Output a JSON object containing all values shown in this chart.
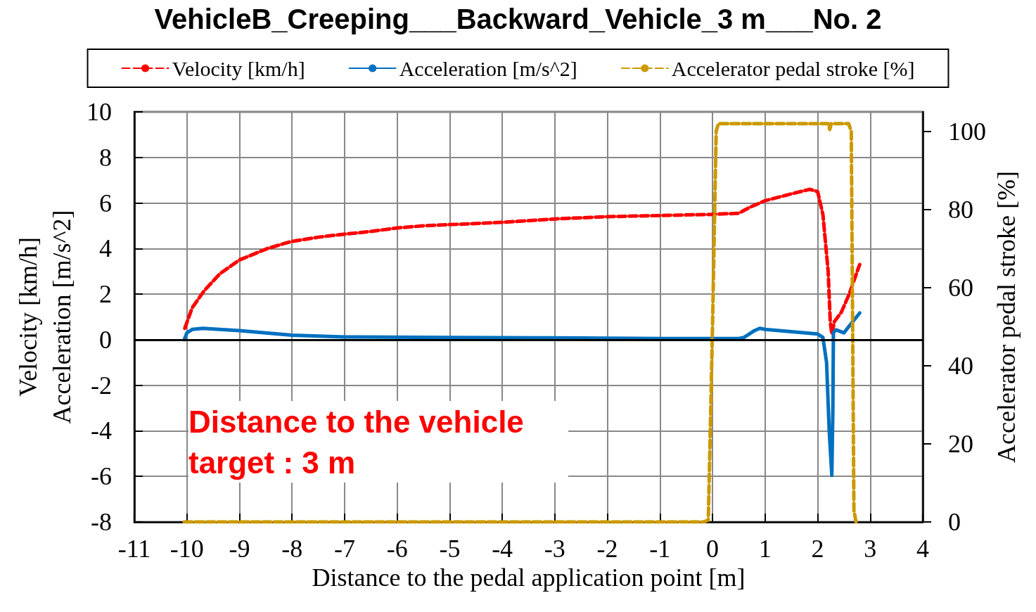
{
  "chart_data": {
    "type": "line",
    "title": "VehicleB_Creeping___Backward_Vehicle_3 m___No. 2",
    "xlabel": "Distance to the pedal application point [m]",
    "ylabel": "Velocity [km/h]\nAcceleration [m/s^2]",
    "y2label": "Accelerator pedal stroke [%]",
    "xlim": [
      -11,
      4
    ],
    "xticks": [
      -11,
      -10,
      -9,
      -8,
      -7,
      -6,
      -5,
      -4,
      -3,
      -2,
      -1,
      0,
      1,
      2,
      3,
      4
    ],
    "ylim": [
      -8,
      10
    ],
    "yticks": [
      -8,
      -6,
      -4,
      -2,
      0,
      2,
      4,
      6,
      8,
      10
    ],
    "y2lim": [
      0,
      105
    ],
    "y2ticks": [
      0,
      20,
      40,
      60,
      80,
      100
    ],
    "grid": true,
    "legend": "top",
    "marker": "none",
    "ref_lines": [
      {
        "axis": "y",
        "value": 0,
        "color": "#000000"
      }
    ],
    "annotations": [
      "Distance to the vehicle target : 3 m"
    ],
    "series": [
      {
        "name": "Velocity [km/h]",
        "color": "#ff0000",
        "line_style": "dashed",
        "x": [
          -10.04,
          -9.9,
          -9.67,
          -9.37,
          -9.0,
          -8.47,
          -8.03,
          -7.5,
          -7.13,
          -6.5,
          -6.02,
          -5.5,
          -5.0,
          -4.0,
          -3.0,
          -2.0,
          -1.0,
          0.0,
          0.5,
          0.7,
          1.0,
          1.5,
          1.85,
          2.0,
          2.1,
          2.2,
          2.24,
          2.27,
          2.32,
          2.45,
          2.6,
          2.8
        ],
        "values": [
          0.5,
          1.4,
          2.15,
          2.9,
          3.5,
          4.0,
          4.3,
          4.5,
          4.6,
          4.75,
          4.9,
          5.0,
          5.05,
          5.15,
          5.3,
          5.4,
          5.45,
          5.5,
          5.55,
          5.8,
          6.1,
          6.4,
          6.6,
          6.5,
          5.5,
          3.0,
          0.8,
          0.25,
          0.8,
          1.2,
          2.0,
          3.3
        ]
      },
      {
        "name": "Acceleration [m/s^2]",
        "color": "#0070c0",
        "line_style": "solid",
        "x": [
          -10.05,
          -10.0,
          -9.9,
          -9.7,
          -9.0,
          -8.5,
          -8.0,
          -7.0,
          -5.0,
          -3.0,
          -1.0,
          0.5,
          0.6,
          0.8,
          0.9,
          1.0,
          2.0,
          2.1,
          2.17,
          2.22,
          2.27,
          2.29,
          2.3,
          2.35,
          2.5,
          2.6,
          2.8
        ],
        "values": [
          0.0,
          0.3,
          0.45,
          0.5,
          0.4,
          0.3,
          0.2,
          0.12,
          0.1,
          0.08,
          0.05,
          0.05,
          0.1,
          0.4,
          0.5,
          0.45,
          0.25,
          0.1,
          -1.0,
          -4.0,
          -5.96,
          -3.0,
          0.3,
          0.43,
          0.3,
          0.6,
          1.17
        ]
      },
      {
        "name": "Accelerator pedal stroke [%]",
        "color": "#cc9900",
        "line_style": "dashed",
        "axis": "y2",
        "x": [
          -10.05,
          -0.17,
          -0.08,
          0.0,
          0.07,
          0.11,
          1.0,
          2.2,
          2.23,
          2.26,
          2.59,
          2.64,
          2.69,
          2.73
        ],
        "values": [
          0,
          0,
          0.5,
          50,
          100,
          102,
          102,
          102,
          100.5,
          102,
          102,
          100,
          3,
          0
        ]
      }
    ]
  }
}
